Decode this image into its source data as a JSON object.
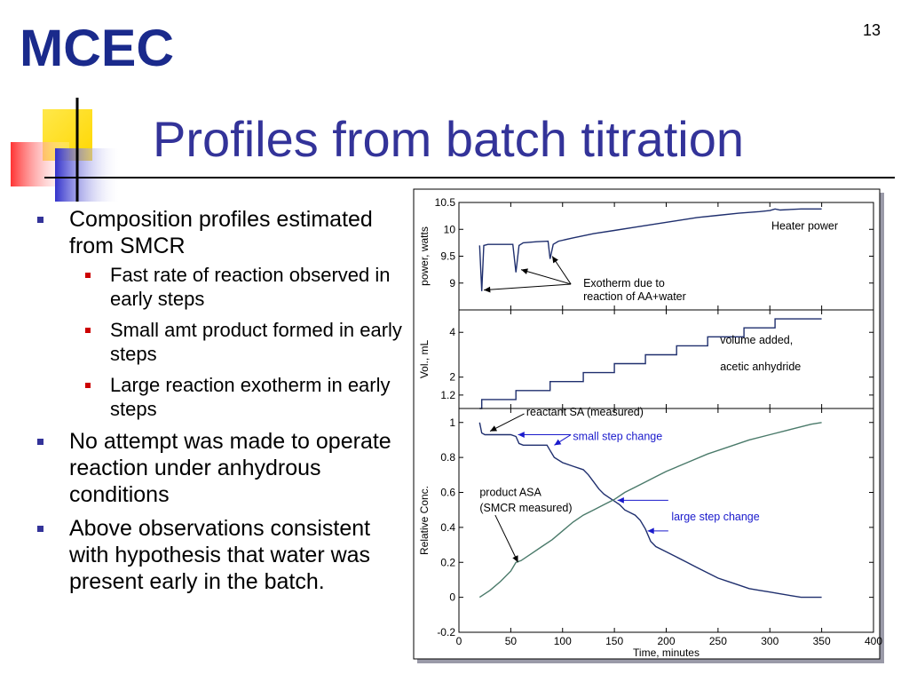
{
  "slide": {
    "number": "13",
    "logo_text": "MCEC",
    "title": "Profiles from batch titration",
    "colors": {
      "title": "#333399",
      "bullet_l1": "#333399",
      "bullet_l2": "#cc0000",
      "logo": "#1a2a8c"
    }
  },
  "bullets": [
    {
      "text": "Composition profiles estimated from SMCR",
      "children": [
        {
          "text": "Fast rate of reaction observed in early steps"
        },
        {
          "text": "Small amt product formed in early steps"
        },
        {
          "text": "Large reaction exotherm in early steps"
        }
      ]
    },
    {
      "text": "No attempt was made to operate reaction under anhydrous conditions",
      "children": []
    },
    {
      "text": "Above observations consistent with hypothesis that water was present early in the batch.",
      "children": []
    }
  ],
  "chart_data": [
    {
      "type": "line",
      "panel": "power",
      "ylabel": "power, watts",
      "xlim": [
        0,
        400
      ],
      "ylim": [
        8.5,
        10.5
      ],
      "yticks": [
        9,
        9.5,
        10,
        10.5
      ],
      "ytick_labels": [
        "9",
        "9.5",
        "10",
        "10.5"
      ],
      "series": [
        {
          "name": "Heater power",
          "color": "#1f2f6e",
          "x": [
            20,
            22,
            24,
            28,
            40,
            52,
            55,
            58,
            62,
            75,
            86,
            88,
            91,
            96,
            110,
            130,
            150,
            170,
            190,
            210,
            230,
            250,
            270,
            290,
            300,
            305,
            310,
            330,
            350
          ],
          "y": [
            9.7,
            8.85,
            9.7,
            9.72,
            9.72,
            9.72,
            9.2,
            9.7,
            9.75,
            9.77,
            9.78,
            9.45,
            9.72,
            9.78,
            9.84,
            9.92,
            9.98,
            10.04,
            10.1,
            10.16,
            10.22,
            10.26,
            10.3,
            10.33,
            10.35,
            10.38,
            10.36,
            10.38,
            10.38
          ]
        }
      ],
      "annotations": [
        {
          "text": "Exotherm due to",
          "x": 120,
          "y": 9.0
        },
        {
          "text": "reaction of AA+water",
          "x": 120,
          "y": 8.75
        }
      ],
      "arrows_to": [
        [
          24,
          8.87
        ],
        [
          60,
          9.25
        ],
        [
          90,
          9.5
        ]
      ],
      "arrow_from": [
        108,
        8.98
      ]
    },
    {
      "type": "line",
      "panel": "volume",
      "ylabel": "Vol., mL",
      "xlim": [
        0,
        400
      ],
      "ylim": [
        0.6,
        5.0
      ],
      "yticks": [
        1.2,
        2,
        4
      ],
      "ytick_labels": [
        "1.2",
        "2",
        "4"
      ],
      "series": [
        {
          "name": "volume added, acetic anhydride",
          "color": "#1f2f6e",
          "steps_x": [
            20,
            22,
            55,
            88,
            120,
            150,
            180,
            210,
            240,
            275,
            305,
            350
          ],
          "steps_y": [
            0.6,
            1.0,
            1.4,
            1.8,
            2.2,
            2.6,
            3.0,
            3.4,
            3.8,
            4.2,
            4.6,
            4.6
          ]
        }
      ],
      "annotations": [
        {
          "text": "volume added,",
          "x": 252,
          "y": 3.5
        },
        {
          "text": "acetic anhydride",
          "x": 252,
          "y": 2.3
        }
      ]
    },
    {
      "type": "line",
      "panel": "concentration",
      "ylabel": "Relative Conc.",
      "xlabel": "Time, minutes",
      "xlim": [
        0,
        400
      ],
      "ylim": [
        -0.2,
        1.08
      ],
      "xticks": [
        0,
        50,
        100,
        150,
        200,
        250,
        300,
        350,
        400
      ],
      "xtick_labels": [
        "0",
        "50",
        "100",
        "150",
        "200",
        "250",
        "300",
        "350",
        "400"
      ],
      "yticks": [
        -0.2,
        0,
        0.2,
        0.4,
        0.6,
        0.8,
        1
      ],
      "ytick_labels": [
        "-0.2",
        "0",
        "0.2",
        "0.4",
        "0.6",
        "0.8",
        "1"
      ],
      "series": [
        {
          "name": "reactant SA (measured)",
          "color": "#1f2f6e",
          "x": [
            20,
            22,
            25,
            30,
            50,
            55,
            58,
            62,
            75,
            85,
            88,
            92,
            100,
            110,
            120,
            125,
            130,
            135,
            140,
            145,
            150,
            155,
            160,
            170,
            175,
            180,
            185,
            190,
            200,
            210,
            220,
            230,
            240,
            250,
            260,
            270,
            280,
            290,
            300,
            310,
            320,
            330,
            340,
            350
          ],
          "y": [
            1.0,
            0.94,
            0.93,
            0.93,
            0.93,
            0.92,
            0.88,
            0.87,
            0.87,
            0.87,
            0.84,
            0.8,
            0.77,
            0.75,
            0.73,
            0.7,
            0.66,
            0.62,
            0.59,
            0.57,
            0.55,
            0.53,
            0.5,
            0.47,
            0.44,
            0.39,
            0.32,
            0.29,
            0.26,
            0.23,
            0.2,
            0.17,
            0.14,
            0.11,
            0.09,
            0.07,
            0.05,
            0.04,
            0.03,
            0.02,
            0.01,
            0.0,
            0.0,
            0.0
          ]
        },
        {
          "name": "product ASA (SMCR measured)",
          "color": "#4a7a6a",
          "x": [
            20,
            30,
            40,
            50,
            55,
            60,
            70,
            80,
            90,
            100,
            110,
            120,
            130,
            140,
            150,
            160,
            170,
            180,
            190,
            200,
            220,
            240,
            260,
            280,
            300,
            320,
            340,
            350
          ],
          "y": [
            0.0,
            0.04,
            0.09,
            0.15,
            0.2,
            0.21,
            0.25,
            0.29,
            0.33,
            0.38,
            0.43,
            0.47,
            0.5,
            0.53,
            0.56,
            0.6,
            0.63,
            0.66,
            0.69,
            0.72,
            0.77,
            0.82,
            0.86,
            0.9,
            0.93,
            0.96,
            0.99,
            1.0
          ]
        }
      ],
      "annotations": [
        {
          "text": "reactant SA (measured)",
          "x": 65,
          "y": 1.06,
          "color": "#000000"
        },
        {
          "text": "small step change",
          "x": 110,
          "y": 0.92,
          "color": "#1a1acc"
        },
        {
          "text": "product ASA",
          "x": 20,
          "y": 0.6,
          "color": "#000000"
        },
        {
          "text": "(SMCR measured)",
          "x": 20,
          "y": 0.51,
          "color": "#000000"
        },
        {
          "text": "large step change",
          "x": 205,
          "y": 0.46,
          "color": "#1a1acc"
        }
      ]
    }
  ]
}
